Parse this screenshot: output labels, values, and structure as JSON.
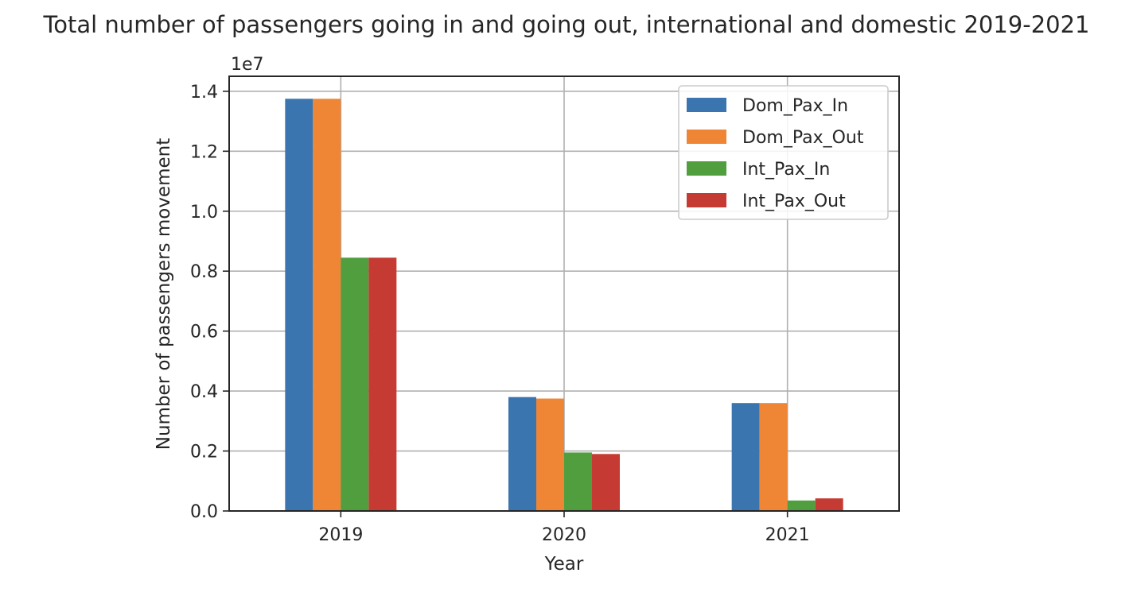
{
  "chart_data": {
    "type": "bar",
    "title": "Total number of passengers going in and going out, international and domestic 2019-2021",
    "xlabel": "Year",
    "ylabel": "Number of passengers movement",
    "offset_label": "1e7",
    "categories": [
      "2019",
      "2020",
      "2021"
    ],
    "series": [
      {
        "name": "Dom_Pax_In",
        "color": "#3b75af",
        "values": [
          13750000,
          3800000,
          3600000
        ]
      },
      {
        "name": "Dom_Pax_Out",
        "color": "#ef8636",
        "values": [
          13750000,
          3750000,
          3600000
        ]
      },
      {
        "name": "Int_Pax_In",
        "color": "#519e3e",
        "values": [
          8450000,
          1950000,
          350000
        ]
      },
      {
        "name": "Int_Pax_Out",
        "color": "#c53a32",
        "values": [
          8450000,
          1900000,
          420000
        ]
      }
    ],
    "yticks": [
      "0.0",
      "0.2",
      "0.4",
      "0.6",
      "0.8",
      "1.0",
      "1.2",
      "1.4"
    ],
    "ylim": [
      0,
      14500000
    ],
    "grid": true,
    "legend_position": "top-right"
  }
}
